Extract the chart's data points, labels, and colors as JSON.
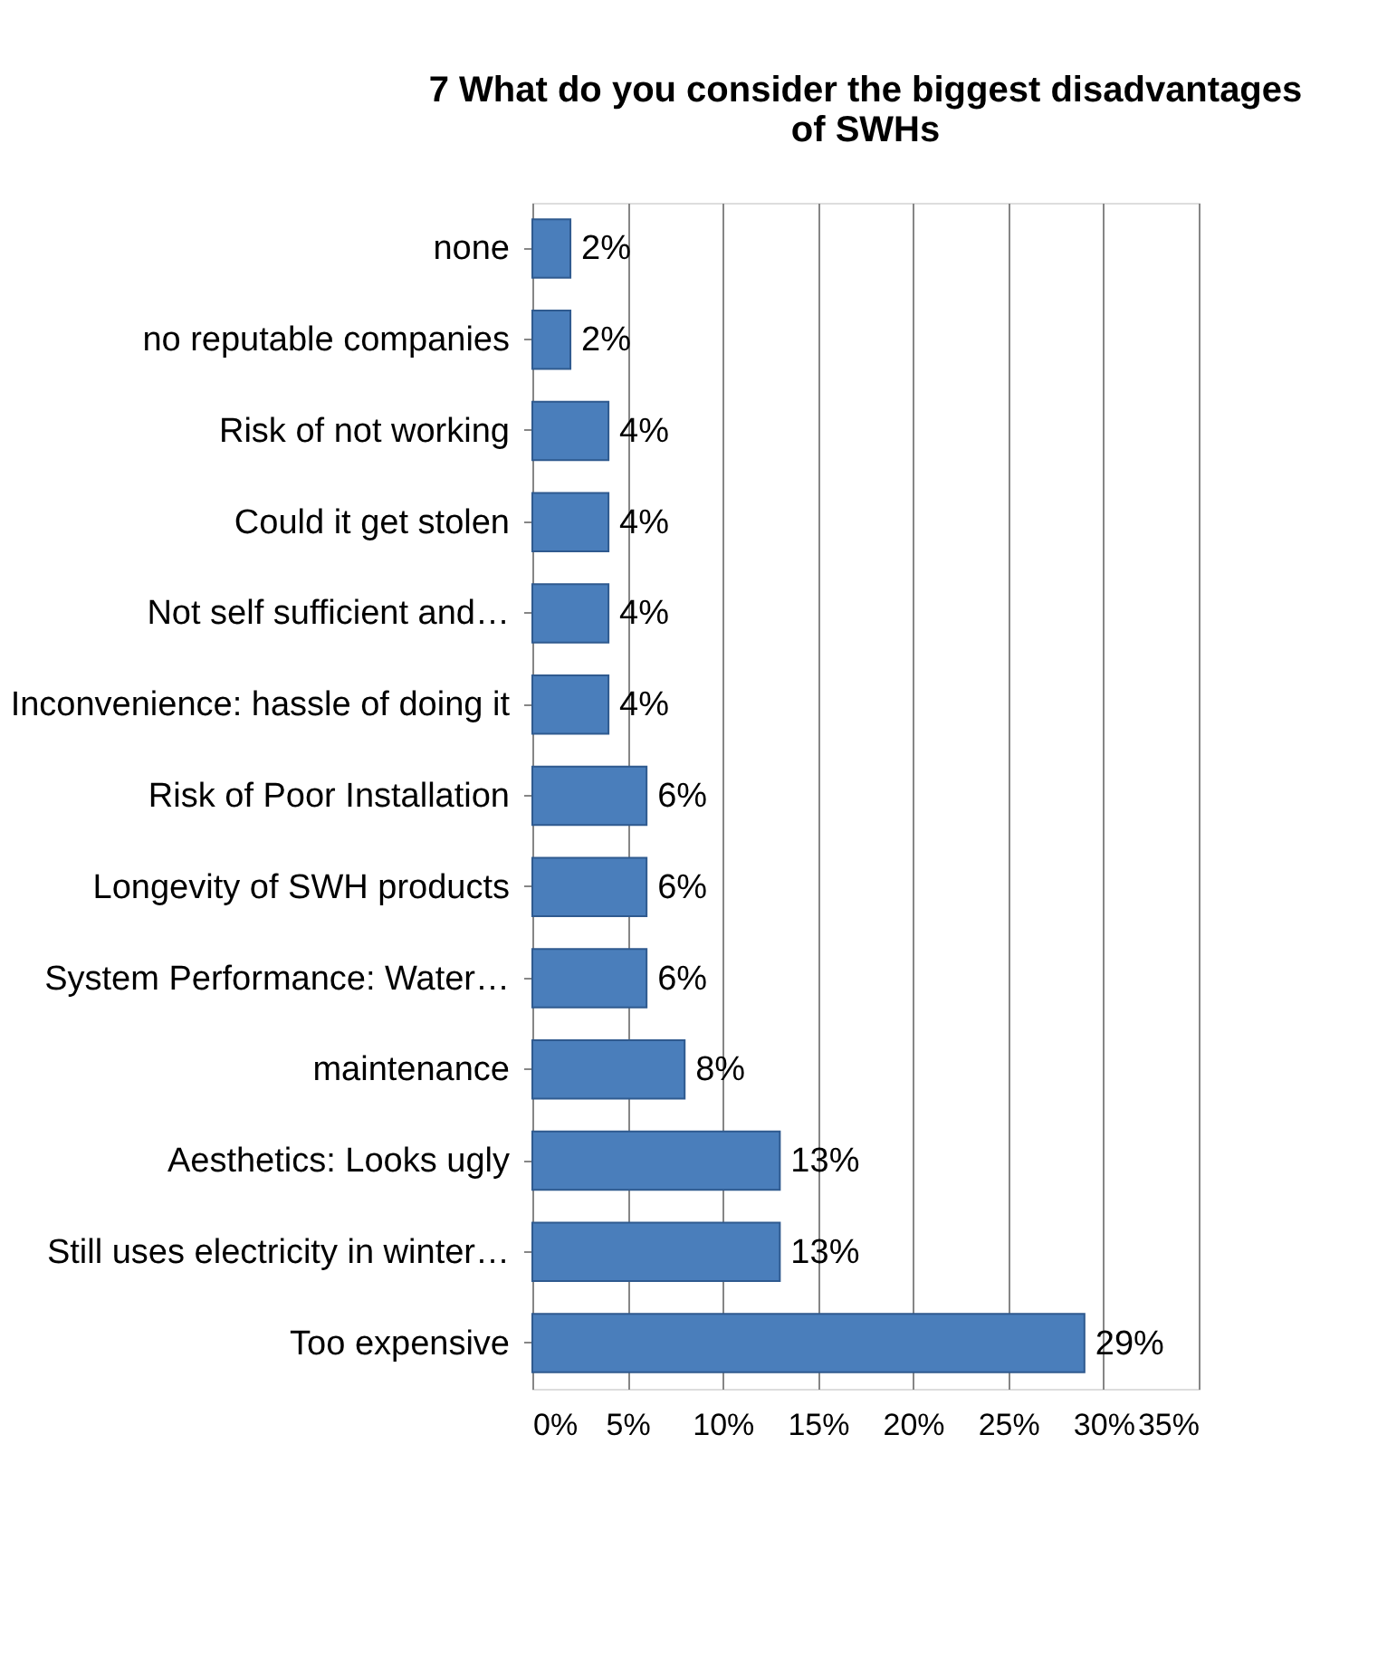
{
  "chart_data": {
    "type": "bar",
    "orientation": "horizontal",
    "title": "7 What do you consider the biggest disadvantages\nof   SWHs",
    "categories": [
      "none",
      "no reputable companies",
      "Risk of not working",
      "Could it get stolen",
      "Not self sufficient and…",
      "Inconvenience: hassle of doing it",
      "Risk of Poor Installation",
      "Longevity of SWH products",
      "System Performance: Water…",
      "maintenance",
      "Aesthetics: Looks ugly",
      "Still uses electricity in winter…",
      "Too expensive"
    ],
    "values": [
      2,
      2,
      4,
      4,
      4,
      4,
      6,
      6,
      6,
      8,
      13,
      13,
      29
    ],
    "value_labels": [
      "2%",
      "2%",
      "4%",
      "4%",
      "4%",
      "4%",
      "6%",
      "6%",
      "6%",
      "8%",
      "13%",
      "13%",
      "29%"
    ],
    "color": "#4a7ebb",
    "xlim": [
      0,
      35
    ],
    "xticks": [
      {
        "value": 0,
        "label": "0%"
      },
      {
        "value": 5,
        "label": "5%"
      },
      {
        "value": 10,
        "label": "10%"
      },
      {
        "value": 15,
        "label": "15%"
      },
      {
        "value": 20,
        "label": "20%"
      },
      {
        "value": 25,
        "label": "25%"
      },
      {
        "value": 30,
        "label": "30%"
      },
      {
        "value": 35,
        "label": "35%"
      }
    ],
    "grid": "x"
  }
}
